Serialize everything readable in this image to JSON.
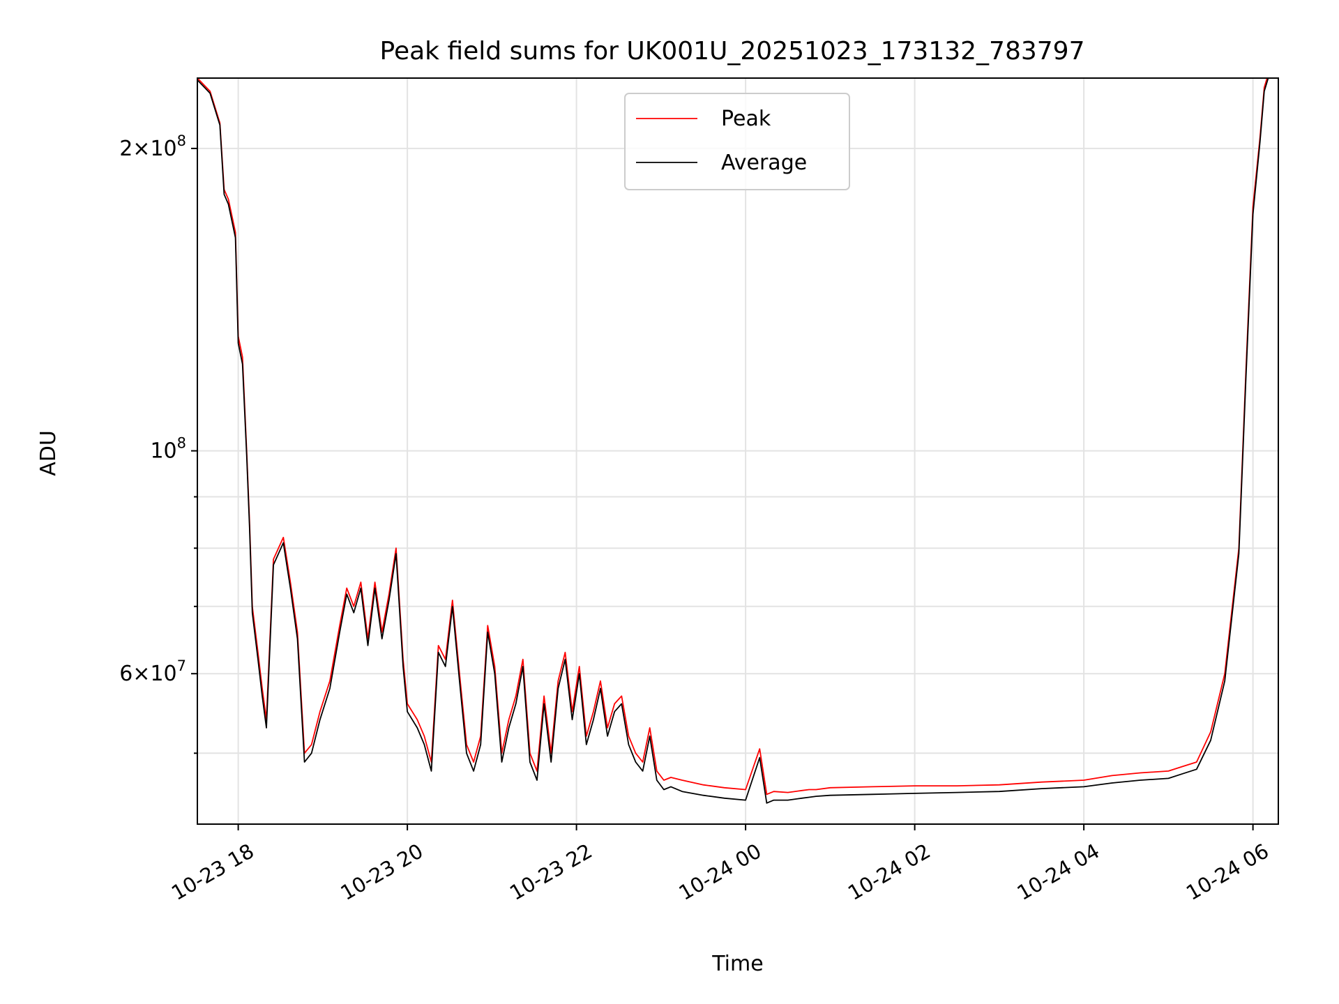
{
  "chart_data": {
    "type": "line",
    "title": "Peak field sums for UK001U_20251023_173132_783797",
    "xlabel": "Time",
    "ylabel": "ADU",
    "yscale": "log",
    "grid": true,
    "legend_position": "top-center",
    "xlim": [
      "2025-10-23 17:31",
      "2025-10-24 06:18"
    ],
    "ylim": [
      42500000,
      235000000
    ],
    "x_ticks": [
      {
        "t": "2025-10-23 18:00",
        "label": "10-23 18"
      },
      {
        "t": "2025-10-23 20:00",
        "label": "10-23 20"
      },
      {
        "t": "2025-10-23 22:00",
        "label": "10-23 22"
      },
      {
        "t": "2025-10-24 00:00",
        "label": "10-24 00"
      },
      {
        "t": "2025-10-24 02:00",
        "label": "10-24 02"
      },
      {
        "t": "2025-10-24 04:00",
        "label": "10-24 04"
      },
      {
        "t": "2025-10-24 06:00",
        "label": "10-24 06"
      }
    ],
    "y_major_ticks": [
      {
        "value": 200000000,
        "mant": "2",
        "times": "×",
        "base": "10",
        "exp": "8"
      },
      {
        "value": 100000000,
        "mant": "",
        "times": "",
        "base": "10",
        "exp": "8"
      },
      {
        "value": 60000000,
        "mant": "6",
        "times": "×",
        "base": "10",
        "exp": "7"
      }
    ],
    "y_minor_ticks": [
      50000000,
      70000000,
      80000000,
      90000000
    ],
    "series": [
      {
        "name": "Peak",
        "color": "#ff0000",
        "x": [
          "2025-10-23 17:31",
          "2025-10-23 17:40",
          "2025-10-23 17:47",
          "2025-10-23 17:50",
          "2025-10-23 17:53",
          "2025-10-23 17:58",
          "2025-10-23 18:00",
          "2025-10-23 18:03",
          "2025-10-23 18:06",
          "2025-10-23 18:08",
          "2025-10-23 18:10",
          "2025-10-23 18:14",
          "2025-10-23 18:17",
          "2025-10-23 18:20",
          "2025-10-23 18:25",
          "2025-10-23 18:32",
          "2025-10-23 18:37",
          "2025-10-23 18:42",
          "2025-10-23 18:47",
          "2025-10-23 18:52",
          "2025-10-23 18:58",
          "2025-10-23 19:05",
          "2025-10-23 19:12",
          "2025-10-23 19:17",
          "2025-10-23 19:22",
          "2025-10-23 19:27",
          "2025-10-23 19:32",
          "2025-10-23 19:37",
          "2025-10-23 19:42",
          "2025-10-23 19:47",
          "2025-10-23 19:52",
          "2025-10-23 19:57",
          "2025-10-23 20:00",
          "2025-10-23 20:07",
          "2025-10-23 20:12",
          "2025-10-23 20:17",
          "2025-10-23 20:22",
          "2025-10-23 20:27",
          "2025-10-23 20:32",
          "2025-10-23 20:37",
          "2025-10-23 20:42",
          "2025-10-23 20:47",
          "2025-10-23 20:52",
          "2025-10-23 20:57",
          "2025-10-23 21:02",
          "2025-10-23 21:07",
          "2025-10-23 21:12",
          "2025-10-23 21:17",
          "2025-10-23 21:22",
          "2025-10-23 21:27",
          "2025-10-23 21:32",
          "2025-10-23 21:37",
          "2025-10-23 21:42",
          "2025-10-23 21:47",
          "2025-10-23 21:52",
          "2025-10-23 21:57",
          "2025-10-23 22:02",
          "2025-10-23 22:07",
          "2025-10-23 22:12",
          "2025-10-23 22:17",
          "2025-10-23 22:22",
          "2025-10-23 22:27",
          "2025-10-23 22:32",
          "2025-10-23 22:37",
          "2025-10-23 22:42",
          "2025-10-23 22:47",
          "2025-10-23 22:52",
          "2025-10-23 22:57",
          "2025-10-23 23:02",
          "2025-10-23 23:07",
          "2025-10-23 23:15",
          "2025-10-23 23:30",
          "2025-10-23 23:45",
          "2025-10-24 00:00",
          "2025-10-24 00:10",
          "2025-10-24 00:15",
          "2025-10-24 00:20",
          "2025-10-24 00:30",
          "2025-10-24 00:40",
          "2025-10-24 00:45",
          "2025-10-24 00:50",
          "2025-10-24 01:00",
          "2025-10-24 01:30",
          "2025-10-24 02:00",
          "2025-10-24 02:30",
          "2025-10-24 03:00",
          "2025-10-24 03:30",
          "2025-10-24 04:00",
          "2025-10-24 04:20",
          "2025-10-24 04:40",
          "2025-10-24 05:00",
          "2025-10-24 05:10",
          "2025-10-24 05:20",
          "2025-10-24 05:30",
          "2025-10-24 05:40",
          "2025-10-24 05:50",
          "2025-10-24 05:55",
          "2025-10-24 06:00",
          "2025-10-24 06:05",
          "2025-10-24 06:08",
          "2025-10-24 06:12"
        ],
        "y": [
          235000000,
          228000000,
          212000000,
          182000000,
          178000000,
          165000000,
          130000000,
          124000000,
          100000000,
          85000000,
          70000000,
          63000000,
          58000000,
          54000000,
          78000000,
          82000000,
          74000000,
          66000000,
          50000000,
          51000000,
          55000000,
          59000000,
          67000000,
          73000000,
          70000000,
          74000000,
          65000000,
          74000000,
          66000000,
          72000000,
          80000000,
          62000000,
          56000000,
          54000000,
          52000000,
          49000000,
          64000000,
          62000000,
          71000000,
          60000000,
          51000000,
          49000000,
          52000000,
          67000000,
          61000000,
          50000000,
          54000000,
          57000000,
          62000000,
          50000000,
          48000000,
          57000000,
          50000000,
          59000000,
          63000000,
          55000000,
          61000000,
          52000000,
          55000000,
          59000000,
          53000000,
          56000000,
          57000000,
          52000000,
          50000000,
          49000000,
          53000000,
          48000000,
          47000000,
          47300000,
          47000000,
          46500000,
          46200000,
          46000000,
          50500000,
          45500000,
          45800000,
          45700000,
          45900000,
          46000000,
          46000000,
          46200000,
          46300000,
          46400000,
          46400000,
          46500000,
          46800000,
          47000000,
          47500000,
          47800000,
          48000000,
          48500000,
          49000000,
          52500000,
          60000000,
          80000000,
          120000000,
          175000000,
          205000000,
          230000000,
          240000000
        ]
      },
      {
        "name": "Average",
        "color": "#000000",
        "x": [
          "2025-10-23 17:31",
          "2025-10-23 17:40",
          "2025-10-23 17:47",
          "2025-10-23 17:50",
          "2025-10-23 17:53",
          "2025-10-23 17:58",
          "2025-10-23 18:00",
          "2025-10-23 18:03",
          "2025-10-23 18:06",
          "2025-10-23 18:08",
          "2025-10-23 18:10",
          "2025-10-23 18:14",
          "2025-10-23 18:17",
          "2025-10-23 18:20",
          "2025-10-23 18:25",
          "2025-10-23 18:32",
          "2025-10-23 18:37",
          "2025-10-23 18:42",
          "2025-10-23 18:47",
          "2025-10-23 18:52",
          "2025-10-23 18:58",
          "2025-10-23 19:05",
          "2025-10-23 19:12",
          "2025-10-23 19:17",
          "2025-10-23 19:22",
          "2025-10-23 19:27",
          "2025-10-23 19:32",
          "2025-10-23 19:37",
          "2025-10-23 19:42",
          "2025-10-23 19:47",
          "2025-10-23 19:52",
          "2025-10-23 19:57",
          "2025-10-23 20:00",
          "2025-10-23 20:07",
          "2025-10-23 20:12",
          "2025-10-23 20:17",
          "2025-10-23 20:22",
          "2025-10-23 20:27",
          "2025-10-23 20:32",
          "2025-10-23 20:37",
          "2025-10-23 20:42",
          "2025-10-23 20:47",
          "2025-10-23 20:52",
          "2025-10-23 20:57",
          "2025-10-23 21:02",
          "2025-10-23 21:07",
          "2025-10-23 21:12",
          "2025-10-23 21:17",
          "2025-10-23 21:22",
          "2025-10-23 21:27",
          "2025-10-23 21:32",
          "2025-10-23 21:37",
          "2025-10-23 21:42",
          "2025-10-23 21:47",
          "2025-10-23 21:52",
          "2025-10-23 21:57",
          "2025-10-23 22:02",
          "2025-10-23 22:07",
          "2025-10-23 22:12",
          "2025-10-23 22:17",
          "2025-10-23 22:22",
          "2025-10-23 22:27",
          "2025-10-23 22:32",
          "2025-10-23 22:37",
          "2025-10-23 22:42",
          "2025-10-23 22:47",
          "2025-10-23 22:52",
          "2025-10-23 22:57",
          "2025-10-23 23:02",
          "2025-10-23 23:07",
          "2025-10-23 23:15",
          "2025-10-23 23:30",
          "2025-10-23 23:45",
          "2025-10-24 00:00",
          "2025-10-24 00:10",
          "2025-10-24 00:15",
          "2025-10-24 00:20",
          "2025-10-24 00:30",
          "2025-10-24 00:40",
          "2025-10-24 00:45",
          "2025-10-24 00:50",
          "2025-10-24 01:00",
          "2025-10-24 01:30",
          "2025-10-24 02:00",
          "2025-10-24 02:30",
          "2025-10-24 03:00",
          "2025-10-24 03:30",
          "2025-10-24 04:00",
          "2025-10-24 04:20",
          "2025-10-24 04:40",
          "2025-10-24 05:00",
          "2025-10-24 05:10",
          "2025-10-24 05:20",
          "2025-10-24 05:30",
          "2025-10-24 05:40",
          "2025-10-24 05:50",
          "2025-10-24 05:55",
          "2025-10-24 06:00",
          "2025-10-24 06:05",
          "2025-10-24 06:08",
          "2025-10-24 06:12"
        ],
        "y": [
          234000000,
          227000000,
          211000000,
          180000000,
          176000000,
          163000000,
          128000000,
          122000000,
          99000000,
          84000000,
          69000000,
          62000000,
          57000000,
          53000000,
          77000000,
          81000000,
          73000000,
          65000000,
          49000000,
          50000000,
          54000000,
          58000000,
          66000000,
          72000000,
          69000000,
          73000000,
          64000000,
          73000000,
          65000000,
          71000000,
          79000000,
          61000000,
          55000000,
          53000000,
          51000000,
          48000000,
          63000000,
          61000000,
          70000000,
          59000000,
          50000000,
          48000000,
          51000000,
          66000000,
          60000000,
          49000000,
          53000000,
          56000000,
          61000000,
          49000000,
          47000000,
          56000000,
          49000000,
          58000000,
          62000000,
          54000000,
          60000000,
          51000000,
          54000000,
          58000000,
          52000000,
          55000000,
          56000000,
          51000000,
          49000000,
          48000000,
          52000000,
          47000000,
          46000000,
          46300000,
          45800000,
          45400000,
          45100000,
          44900000,
          49500000,
          44600000,
          44900000,
          44900000,
          45100000,
          45200000,
          45300000,
          45400000,
          45500000,
          45600000,
          45700000,
          45800000,
          46100000,
          46300000,
          46700000,
          47000000,
          47200000,
          47700000,
          48200000,
          51500000,
          59000000,
          79000000,
          118000000,
          172000000,
          203000000,
          228000000,
          238000000
        ]
      }
    ]
  }
}
